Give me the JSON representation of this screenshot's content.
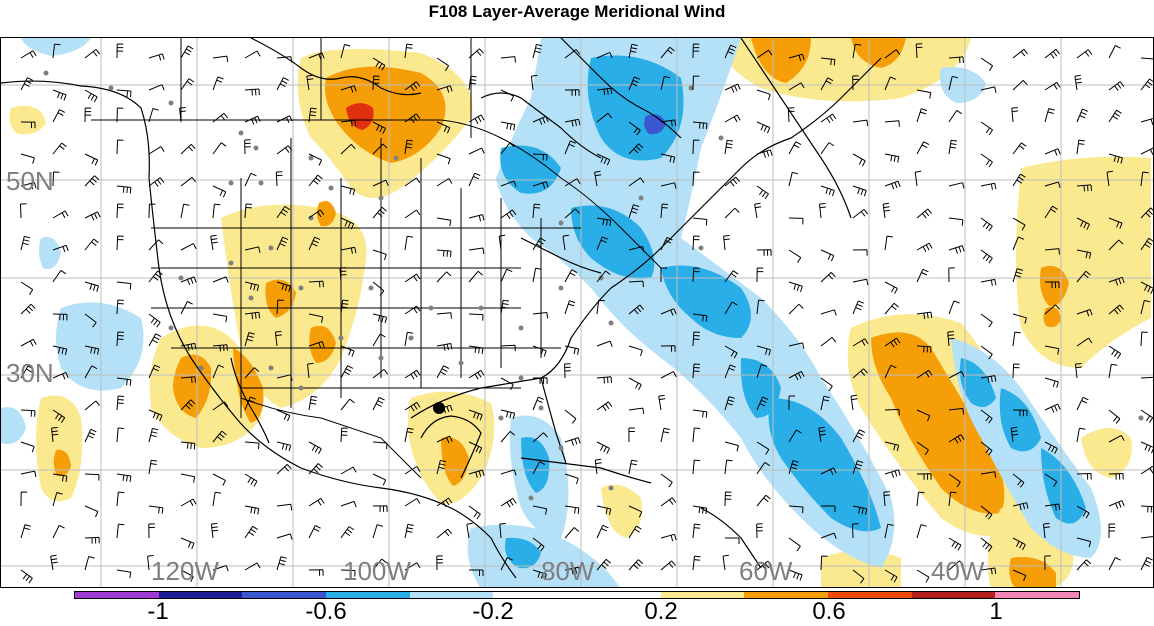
{
  "title": "F108 Layer-Average Meridional Wind",
  "latitude_labels": [
    "50N",
    "30N"
  ],
  "longitude_labels": [
    "120W",
    "100W",
    "80W",
    "60W",
    "40W"
  ],
  "colorbar": {
    "colors": [
      "#a13bd6",
      "#1b1e93",
      "#3a57d0",
      "#29aee8",
      "#b4e1f7",
      "#ffffff",
      "#ffffff",
      "#fbe98f",
      "#f59e08",
      "#f04a0c",
      "#b3211b",
      "#f487b8"
    ],
    "labels": [
      "-1",
      "-0.6",
      "-0.2",
      "0.2",
      "0.6",
      "1"
    ]
  },
  "palette": {
    "yellow": "#fbe98f",
    "orange": "#f59e08",
    "red": "#e03010",
    "light_blue": "#b4e1f7",
    "blue": "#29aee8",
    "dark_blue": "#3a57d0",
    "station_dot": "#808080"
  }
}
